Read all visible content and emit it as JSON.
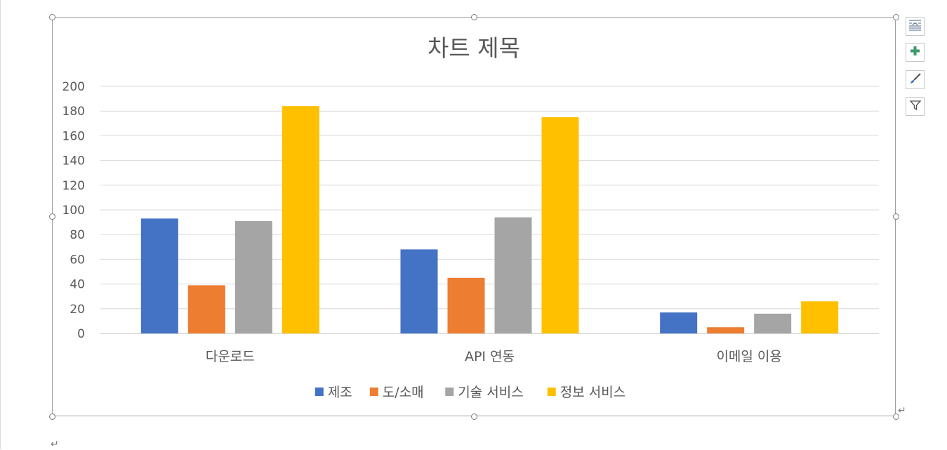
{
  "chart_data": {
    "type": "bar",
    "title": "차트 제목",
    "xlabel": "",
    "ylabel": "",
    "categories": [
      "다운로드",
      "API 연동",
      "이메일 이용"
    ],
    "series": [
      {
        "name": "제조",
        "color": "#4472C4",
        "values": [
          93,
          68,
          17
        ]
      },
      {
        "name": "도/소매",
        "color": "#ED7D31",
        "values": [
          39,
          45,
          5
        ]
      },
      {
        "name": "기술 서비스",
        "color": "#A5A5A5",
        "values": [
          91,
          94,
          16
        ]
      },
      {
        "name": "정보 서비스",
        "color": "#FFC000",
        "values": [
          184,
          175,
          26
        ]
      }
    ],
    "ylim": [
      0,
      200
    ],
    "yticks": [
      0,
      20,
      40,
      60,
      80,
      100,
      120,
      140,
      160,
      180,
      200
    ],
    "grid": true,
    "legend_position": "bottom"
  },
  "side_buttons": [
    {
      "icon": "layout-options-icon"
    },
    {
      "icon": "chart-elements-plus-icon"
    },
    {
      "icon": "chart-styles-brush-icon"
    },
    {
      "icon": "chart-filters-funnel-icon"
    }
  ],
  "marks": {
    "paragraph_mark": "↵"
  }
}
